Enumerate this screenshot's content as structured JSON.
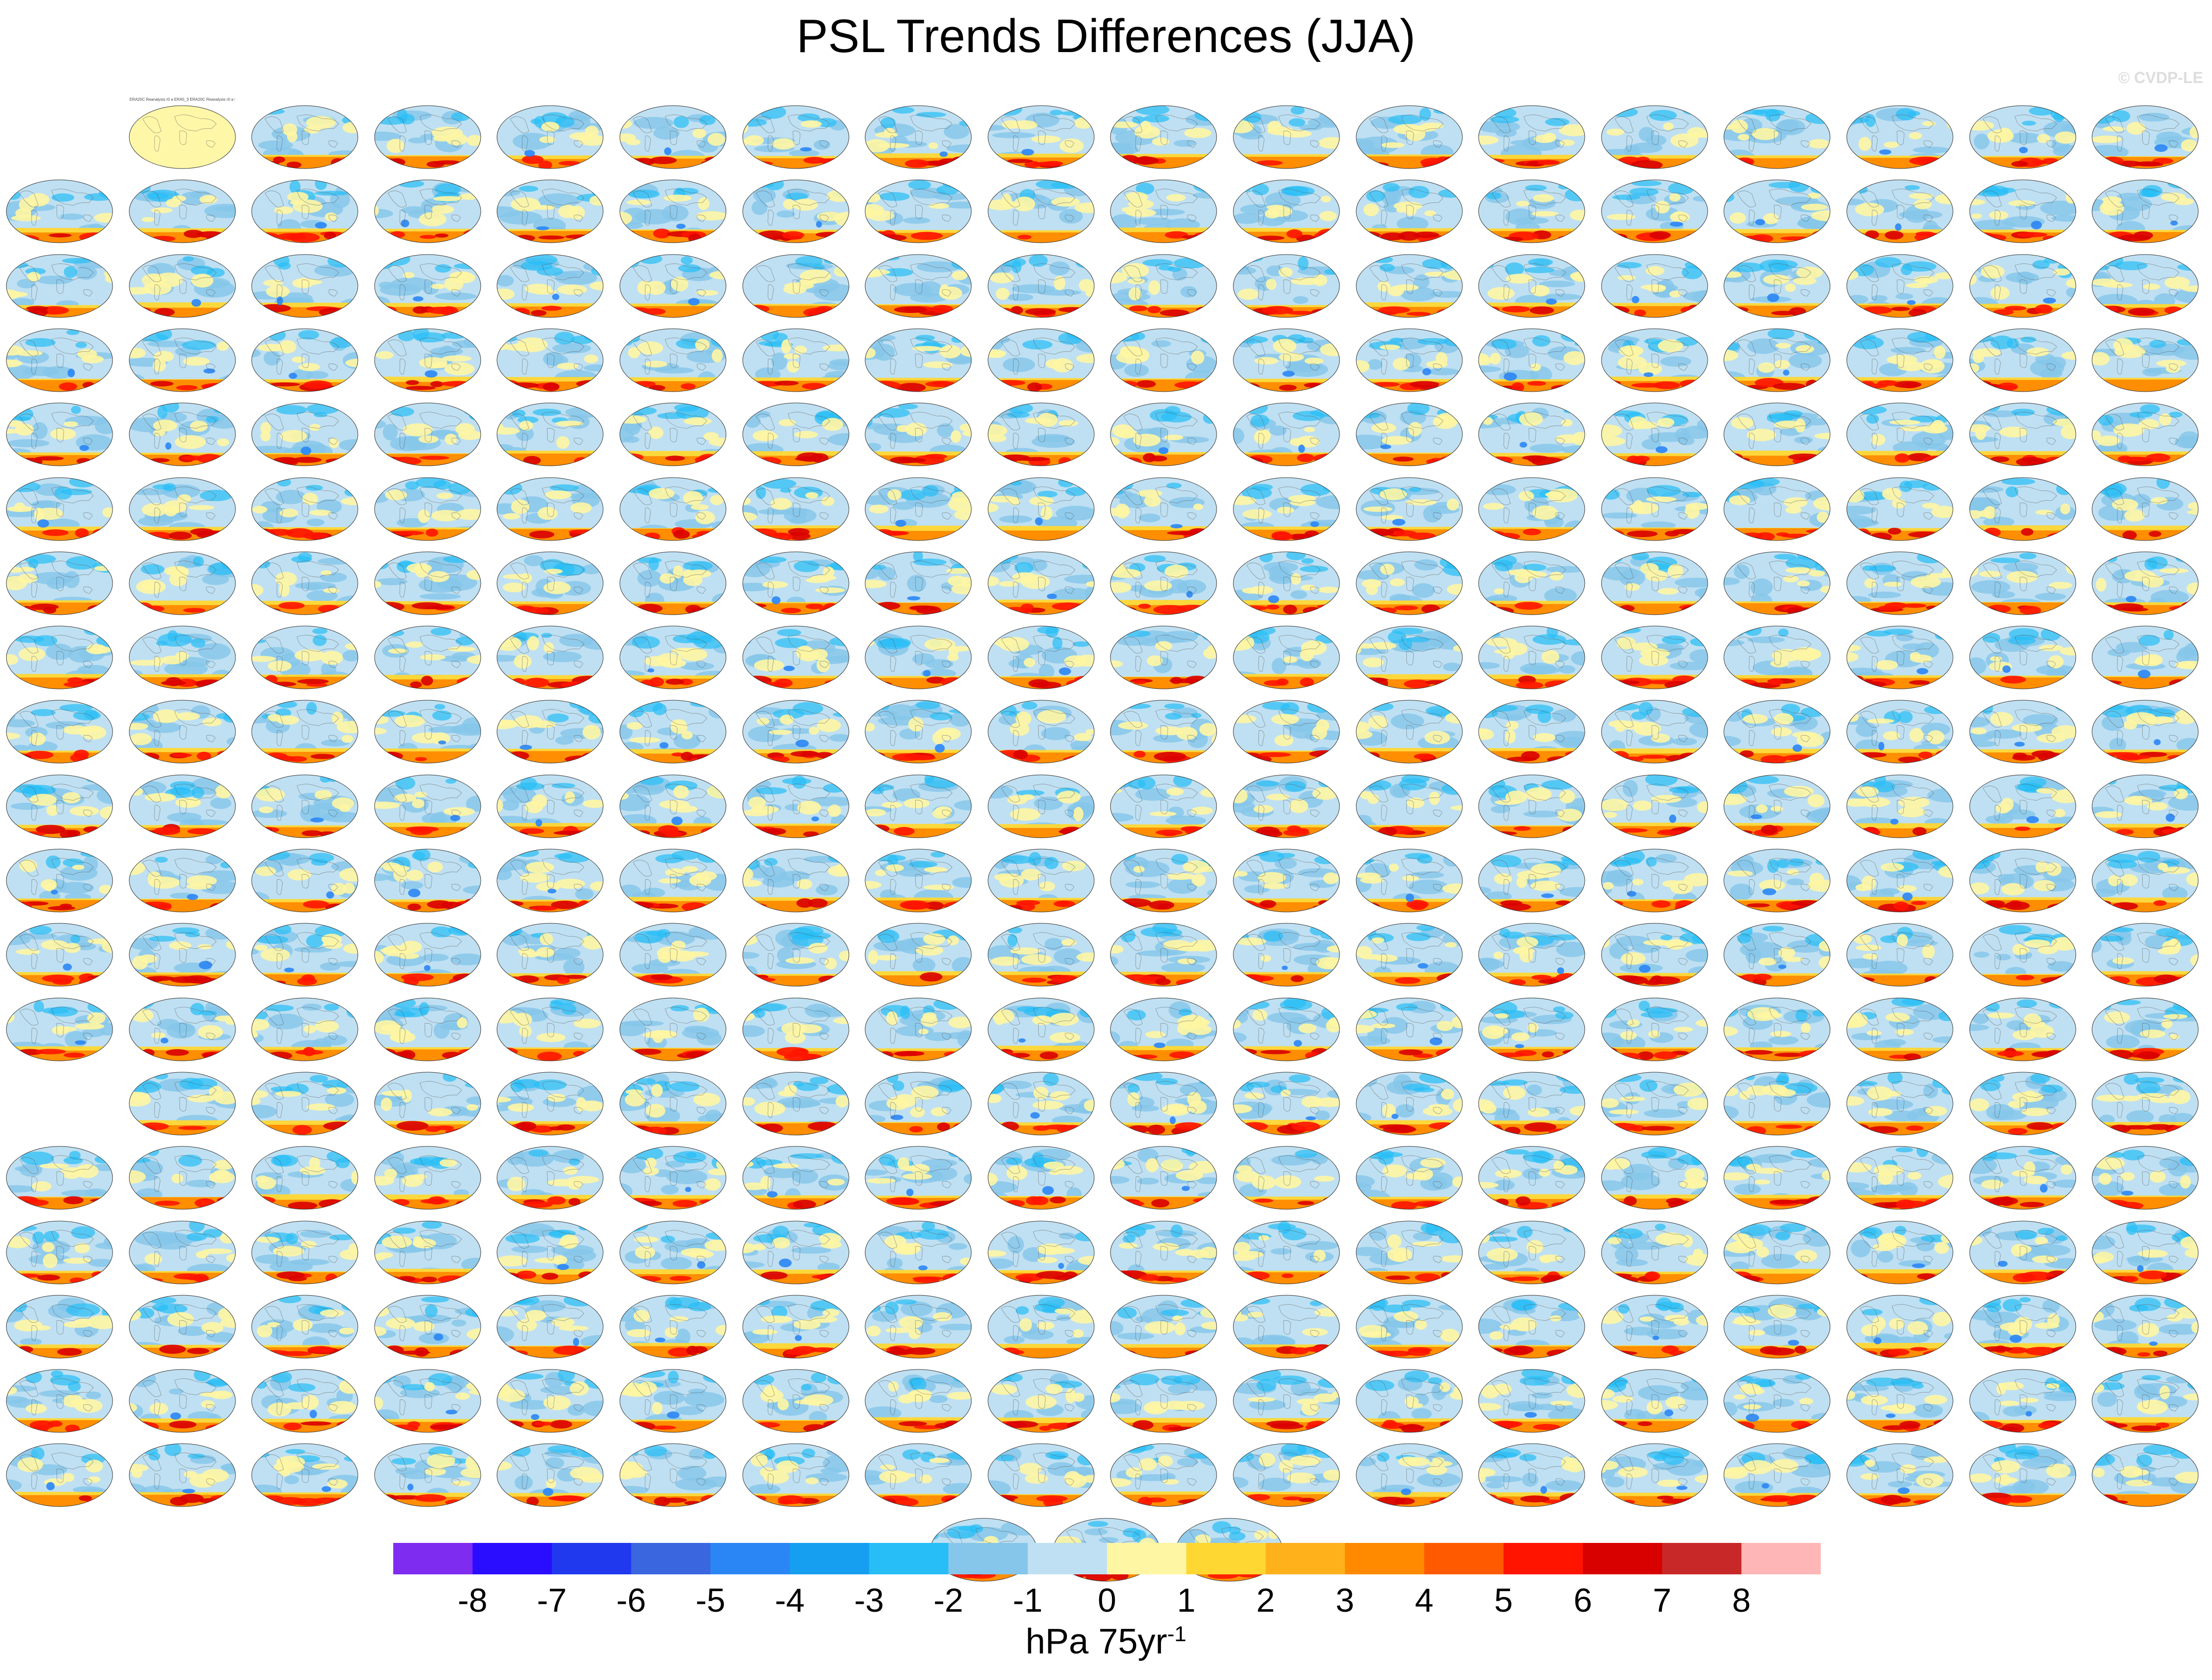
{
  "figure": {
    "title": "PSL Trends Differences (JJA)",
    "watermark": "© CVDP-LE"
  },
  "panels": {
    "rows": 19,
    "cols": 18,
    "first_panel_caption": "ERA20C Reanalysis r0 a ERA5_3 ERA20C Reanalysis r0 a ERA5",
    "caption_note": "captions for remaining ensemble-member panels are too small to read in the source image",
    "row_caption_colors": [
      "#2b86c0",
      "#2b86c0",
      "#2b86c0",
      "#2e8fc6",
      "#3aa58a",
      "#3aa58a",
      "#3aa58a",
      "#3aa58a",
      "#3aa58a",
      "#3aa58a",
      "#c44a2a",
      "#c44a2a",
      "#c44a2a",
      "#c44a2a",
      "#8a6cc9",
      "#8a6cc9",
      "#c9a55a",
      "#c9a55a",
      "#c9a55a"
    ],
    "map_style": "robinson-projection global maps of sea level pressure trend differences"
  },
  "colorbar": {
    "colors": [
      "#7d2cf0",
      "#2a0dff",
      "#2038ee",
      "#3a66e0",
      "#2b86f5",
      "#169ff0",
      "#27bdf7",
      "#85c6ea",
      "#bfe0f2",
      "#fff6a3",
      "#ffd732",
      "#ffb11c",
      "#ff8a00",
      "#ff5a00",
      "#ff1400",
      "#d90000",
      "#c82828",
      "#ffb6b6"
    ],
    "tick_labels": [
      "-8",
      "-7",
      "-6",
      "-5",
      "-4",
      "-3",
      "-2",
      "-1",
      "0",
      "1",
      "2",
      "3",
      "4",
      "5",
      "6",
      "7",
      "8"
    ],
    "unit_base": "hPa 75yr",
    "unit_exponent": "-1"
  }
}
